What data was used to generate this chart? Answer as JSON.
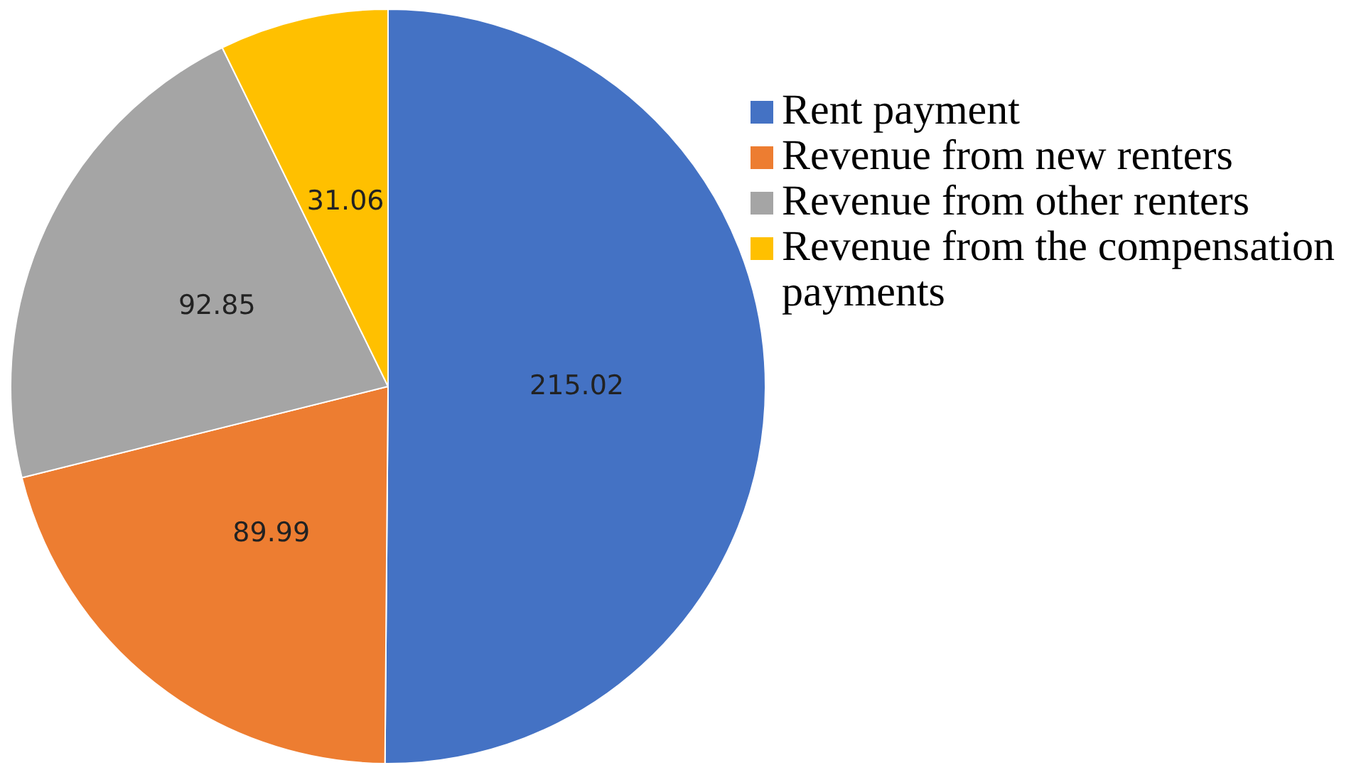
{
  "chart_data": {
    "type": "pie",
    "categories": [
      "Rent payment",
      "Revenue from new renters",
      "Revenue from other renters",
      "Revenue from the compensation payments"
    ],
    "values": [
      215.02,
      89.99,
      92.85,
      31.06
    ],
    "colors": [
      "#4472c4",
      "#ed7d31",
      "#a5a5a5",
      "#ffc000"
    ],
    "data_labels": true,
    "legend": "right"
  }
}
